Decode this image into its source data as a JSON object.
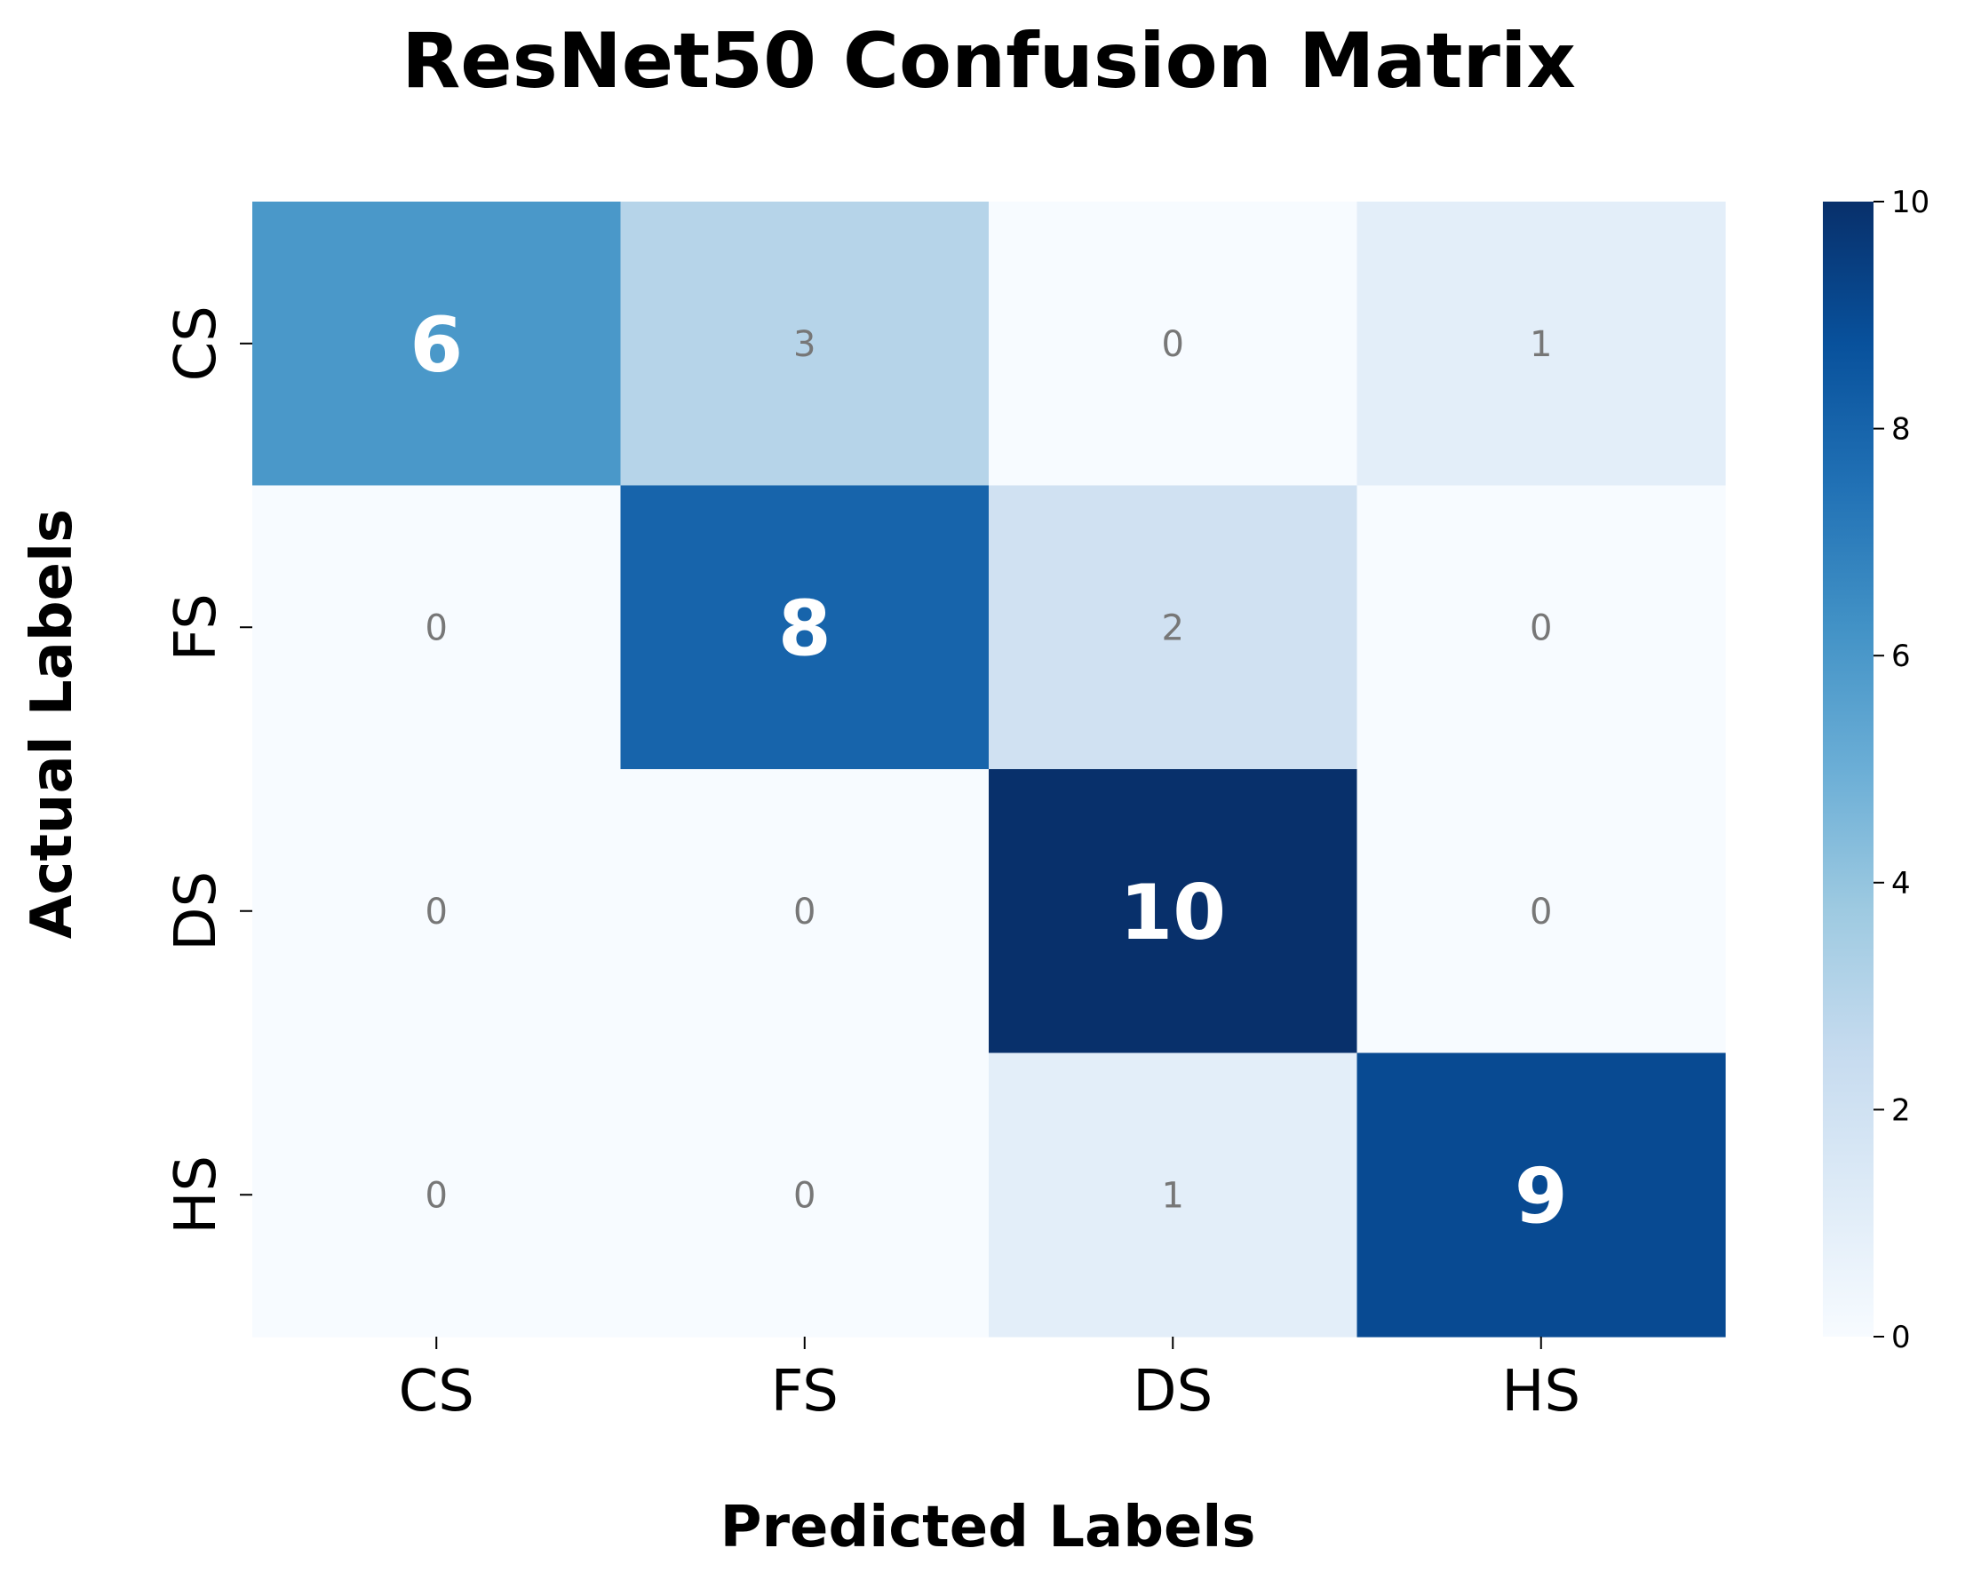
{
  "chart_data": {
    "type": "heatmap",
    "title": "ResNet50 Confusion Matrix",
    "xlabel": "Predicted Labels",
    "ylabel": "Actual Labels",
    "x_categories": [
      "CS",
      "FS",
      "DS",
      "HS"
    ],
    "y_categories": [
      "CS",
      "FS",
      "DS",
      "HS"
    ],
    "values": [
      [
        6,
        3,
        0,
        1
      ],
      [
        0,
        8,
        2,
        0
      ],
      [
        0,
        0,
        10,
        0
      ],
      [
        0,
        0,
        1,
        9
      ]
    ],
    "colormap": "Blues",
    "color_range": [
      0,
      10
    ],
    "colorbar_ticks": [
      0,
      2,
      4,
      6,
      8,
      10
    ],
    "colors": {
      "diagonal_text": "#ffffff",
      "offdiagonal_text": "#777777"
    }
  }
}
